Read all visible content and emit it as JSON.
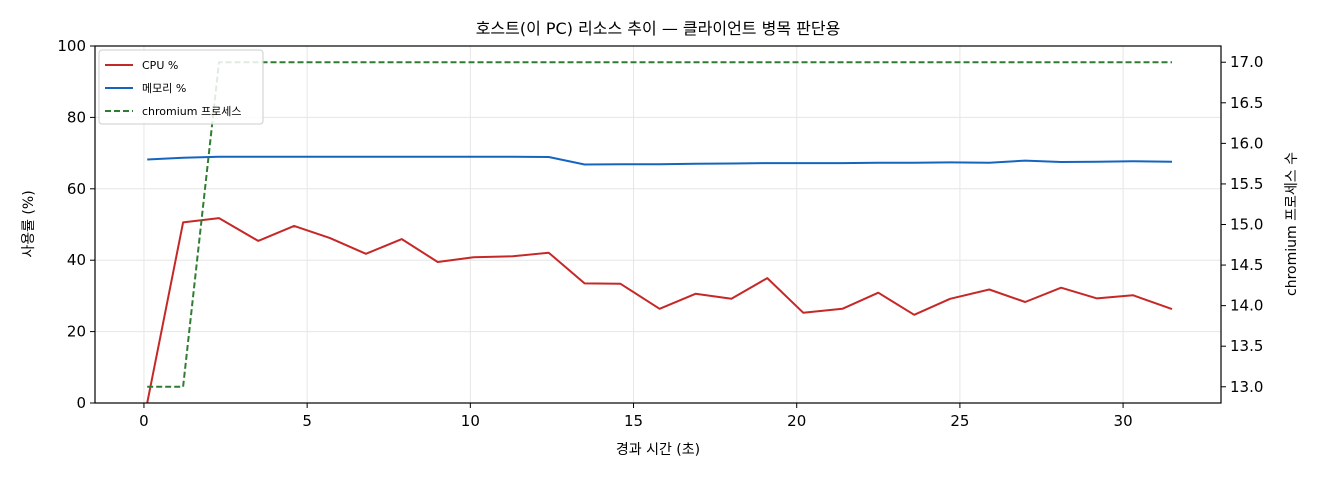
{
  "chart_data": {
    "type": "line",
    "title": "호스트(이 PC) 리소스 추이 — 클라이언트 병목 판단용",
    "xlabel": "경과 시간 (초)",
    "ylabel": "사용률 (%)",
    "y2label": "chromium 프로세스 수",
    "xlim": [
      -1.5,
      33
    ],
    "ylim": [
      0,
      100
    ],
    "y2lim": [
      12.8,
      17.2
    ],
    "xticks": [
      0,
      5,
      10,
      15,
      20,
      25,
      30
    ],
    "yticks": [
      0,
      20,
      40,
      60,
      80,
      100
    ],
    "y2ticks": [
      13.0,
      13.5,
      14.0,
      14.5,
      15.0,
      15.5,
      16.0,
      16.5,
      17.0
    ],
    "y2tick_labels": [
      "13.0",
      "13.5",
      "14.0",
      "14.5",
      "15.0",
      "15.5",
      "16.0",
      "16.5",
      "17.0"
    ],
    "grid": true,
    "legend_position": "top-left",
    "series": [
      {
        "name": "CPU %",
        "axis": "left",
        "color": "#c62828",
        "style": "solid",
        "x": [
          0.1,
          1.2,
          2.3,
          3.5,
          4.6,
          5.7,
          6.8,
          7.9,
          9.0,
          10.1,
          11.3,
          12.4,
          13.5,
          14.6,
          15.8,
          16.9,
          18.0,
          19.1,
          20.2,
          21.4,
          22.5,
          23.6,
          24.7,
          25.9,
          27.0,
          28.1,
          29.2,
          30.3,
          31.5
        ],
        "values": [
          0,
          50.6,
          51.8,
          45.4,
          49.6,
          46.2,
          41.8,
          45.9,
          39.5,
          40.8,
          41.1,
          42.1,
          33.5,
          33.4,
          26.4,
          30.6,
          29.2,
          35.0,
          25.3,
          26.4,
          30.9,
          24.7,
          29.2,
          31.8,
          28.3,
          32.3,
          29.3,
          30.2,
          26.3
        ]
      },
      {
        "name": "메모리 %",
        "axis": "left",
        "color": "#1565c0",
        "style": "solid",
        "x": [
          0.1,
          1.2,
          2.3,
          3.5,
          4.6,
          5.7,
          6.8,
          7.9,
          9.0,
          10.1,
          11.3,
          12.4,
          13.5,
          14.6,
          15.8,
          16.9,
          18.0,
          19.1,
          20.2,
          21.4,
          22.5,
          23.6,
          24.7,
          25.9,
          27.0,
          28.1,
          29.2,
          30.3,
          31.5
        ],
        "values": [
          68.2,
          68.7,
          69.0,
          69.0,
          69.0,
          69.0,
          69.0,
          69.0,
          69.0,
          69.0,
          69.0,
          68.9,
          66.8,
          66.9,
          66.9,
          67.0,
          67.1,
          67.2,
          67.2,
          67.2,
          67.3,
          67.3,
          67.4,
          67.3,
          67.9,
          67.5,
          67.6,
          67.7,
          67.6
        ]
      },
      {
        "name": "chromium 프로세스",
        "axis": "right",
        "color": "#2e7d32",
        "style": "dashed",
        "x": [
          0.1,
          1.2,
          2.3,
          3.5,
          4.6,
          5.7,
          6.8,
          7.9,
          9.0,
          10.1,
          11.3,
          12.4,
          13.5,
          14.6,
          15.8,
          16.9,
          18.0,
          19.1,
          20.2,
          21.4,
          22.5,
          23.6,
          24.7,
          25.9,
          27.0,
          28.1,
          29.2,
          30.3,
          31.5
        ],
        "values": [
          13,
          13,
          17,
          17,
          17,
          17,
          17,
          17,
          17,
          17,
          17,
          17,
          17,
          17,
          17,
          17,
          17,
          17,
          17,
          17,
          17,
          17,
          17,
          17,
          17,
          17,
          17,
          17,
          17
        ]
      }
    ]
  }
}
